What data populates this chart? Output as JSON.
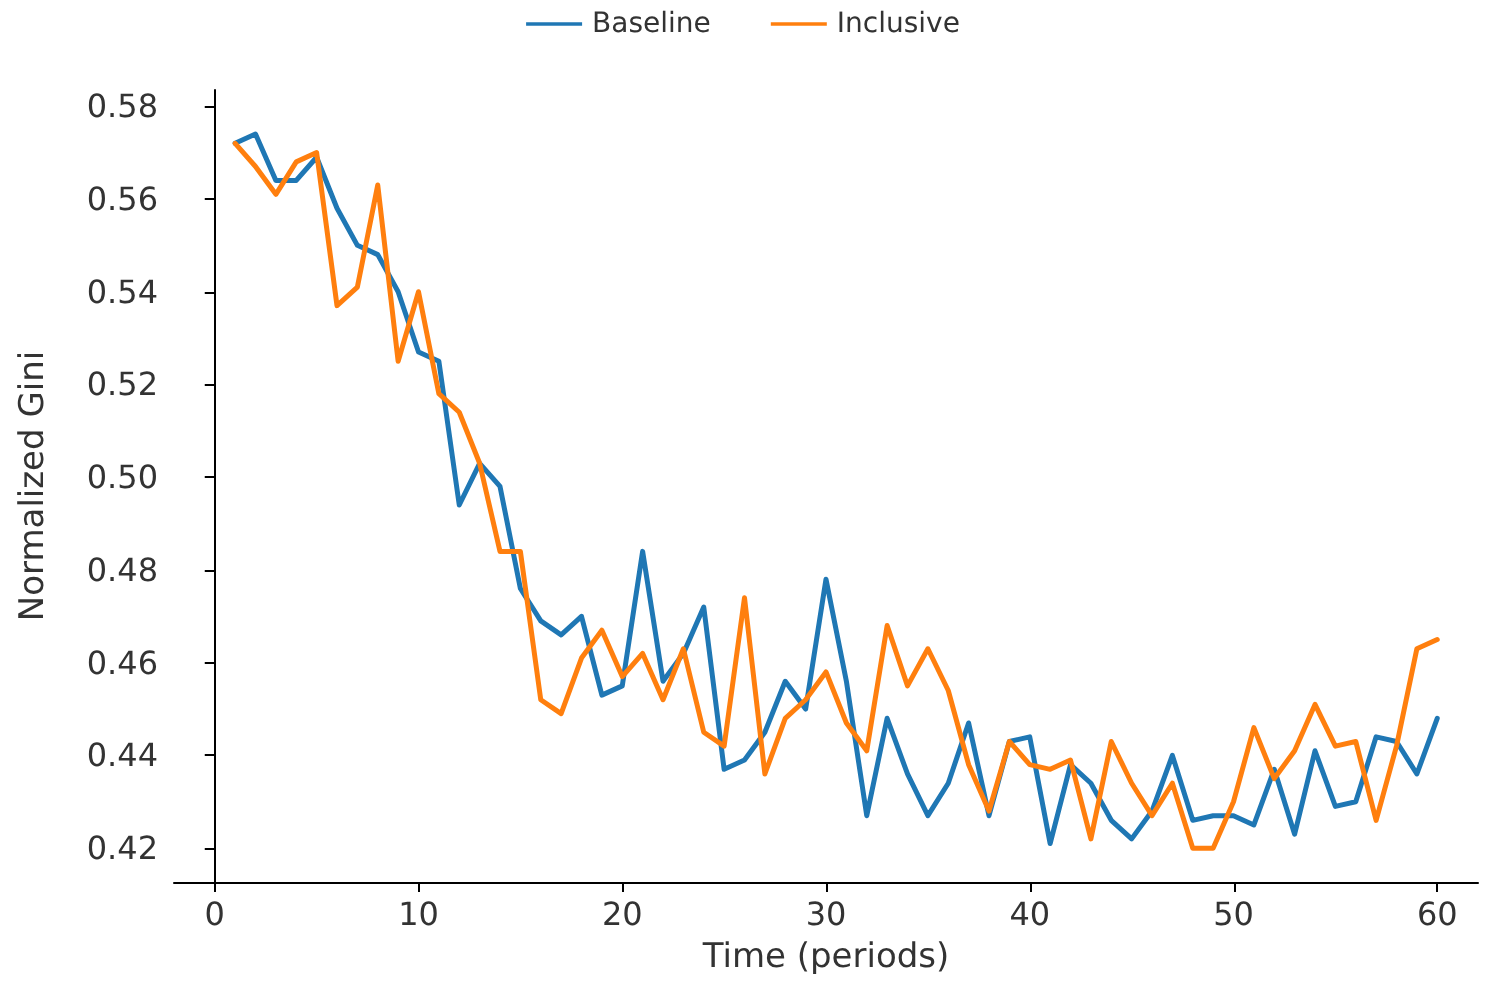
{
  "chart_data": {
    "type": "line",
    "xlabel": "Time (periods)",
    "ylabel": "Normalized Gini",
    "x": [
      1,
      2,
      3,
      4,
      5,
      6,
      7,
      8,
      9,
      10,
      11,
      12,
      13,
      14,
      15,
      16,
      17,
      18,
      19,
      20,
      21,
      22,
      23,
      24,
      25,
      26,
      27,
      28,
      29,
      30,
      31,
      32,
      33,
      34,
      35,
      36,
      37,
      38,
      39,
      40,
      41,
      42,
      43,
      44,
      45,
      46,
      47,
      48,
      49,
      50,
      51,
      52,
      53,
      54,
      55,
      56,
      57,
      58,
      59,
      60
    ],
    "series": [
      {
        "name": "Baseline",
        "color": "#1f77b4",
        "values": [
          0.572,
          0.574,
          0.564,
          0.564,
          0.569,
          0.558,
          0.55,
          0.548,
          0.54,
          0.527,
          0.525,
          0.494,
          0.503,
          0.498,
          0.476,
          0.469,
          0.466,
          0.47,
          0.453,
          0.455,
          0.484,
          0.456,
          0.462,
          0.472,
          0.437,
          0.439,
          0.445,
          0.456,
          0.45,
          0.478,
          0.456,
          0.427,
          0.448,
          0.436,
          0.427,
          0.434,
          0.447,
          0.427,
          0.443,
          0.444,
          0.421,
          0.438,
          0.434,
          0.426,
          0.422,
          0.428,
          0.44,
          0.426,
          0.427,
          0.427,
          0.425,
          0.437,
          0.423,
          0.441,
          0.429,
          0.43,
          0.444,
          0.443,
          0.436,
          0.448
        ]
      },
      {
        "name": "Inclusive",
        "color": "#ff7f0e",
        "values": [
          0.572,
          0.567,
          0.561,
          0.568,
          0.57,
          0.537,
          0.541,
          0.563,
          0.525,
          0.54,
          0.518,
          0.514,
          0.503,
          0.484,
          0.484,
          0.452,
          0.449,
          0.461,
          0.467,
          0.457,
          0.462,
          0.452,
          0.463,
          0.445,
          0.442,
          0.474,
          0.436,
          0.448,
          0.452,
          0.458,
          0.447,
          0.441,
          0.468,
          0.455,
          0.463,
          0.454,
          0.438,
          0.428,
          0.443,
          0.438,
          0.437,
          0.439,
          0.422,
          0.443,
          0.434,
          0.427,
          0.434,
          0.42,
          0.42,
          0.43,
          0.446,
          0.435,
          0.441,
          0.451,
          0.442,
          0.443,
          0.426,
          0.442,
          0.463,
          0.465
        ]
      }
    ],
    "xlim": [
      -2,
      62
    ],
    "xticks": [
      0,
      10,
      20,
      30,
      40,
      50,
      60
    ],
    "ylim": [
      0.4127,
      0.5835
    ],
    "yticks": [
      0.42,
      0.44,
      0.46,
      0.48,
      {
        "value": 0.5,
        "label": "0.50"
      },
      0.52,
      0.54,
      0.56,
      0.58
    ],
    "grid": false,
    "legend": "top",
    "marker": "none",
    "line_style": "solid"
  }
}
